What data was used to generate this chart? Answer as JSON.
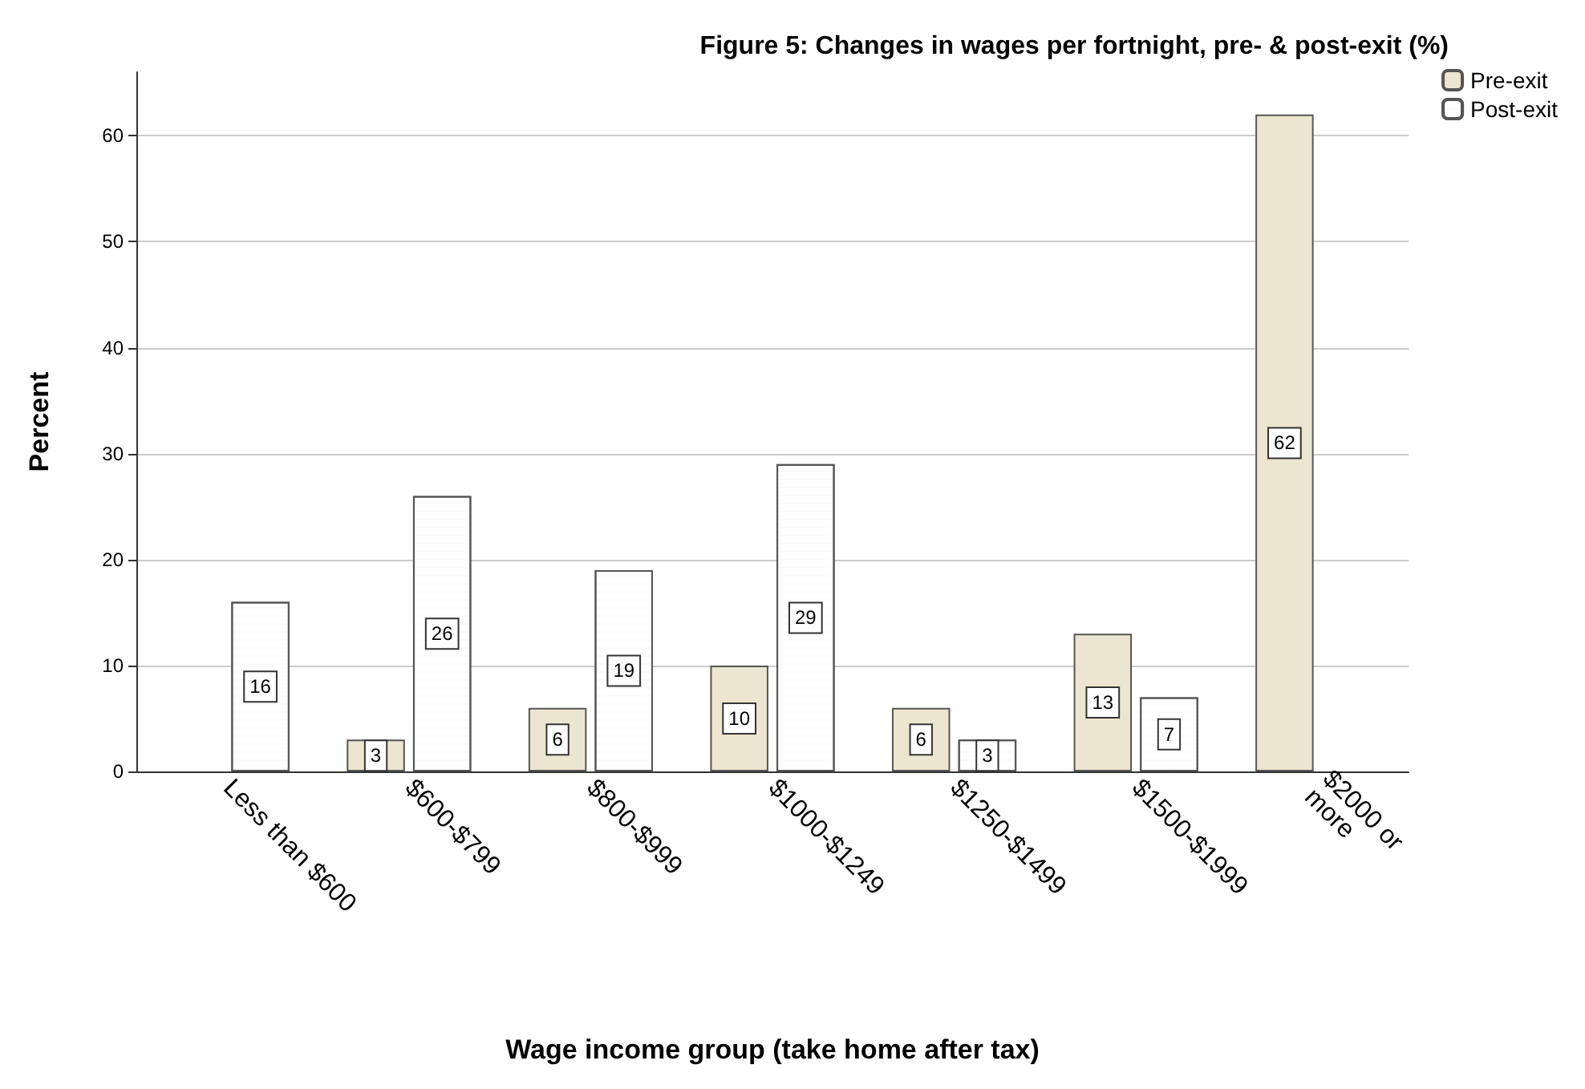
{
  "chart_data": {
    "type": "bar",
    "title": "Figure 5: Changes in wages per fortnight, pre- & post-exit (%)",
    "xlabel": "Wage income group (take home after tax)",
    "ylabel": "Percent",
    "categories": [
      "Less than $600",
      "$600-$799",
      "$800-$999",
      "$1000-$1249",
      "$1250-$1499",
      "$1500-$1999",
      "$2000 or more"
    ],
    "series": [
      {
        "name": "Pre-exit",
        "color": "#ece5cf",
        "values": [
          0,
          3,
          6,
          10,
          6,
          13,
          62
        ],
        "value_labels": [
          null,
          "3",
          "6",
          "10",
          "6",
          "13",
          "62"
        ]
      },
      {
        "name": "Post-exit",
        "color": "#ffffff",
        "values": [
          16,
          26,
          19,
          29,
          3,
          7,
          0
        ],
        "value_labels": [
          "16",
          "26",
          "19",
          "29",
          "3",
          "7",
          null
        ]
      }
    ],
    "ylim": [
      0,
      66
    ],
    "yticks": [
      0,
      10,
      20,
      30,
      40,
      50,
      60
    ],
    "grid": "y",
    "legend": "top right"
  }
}
